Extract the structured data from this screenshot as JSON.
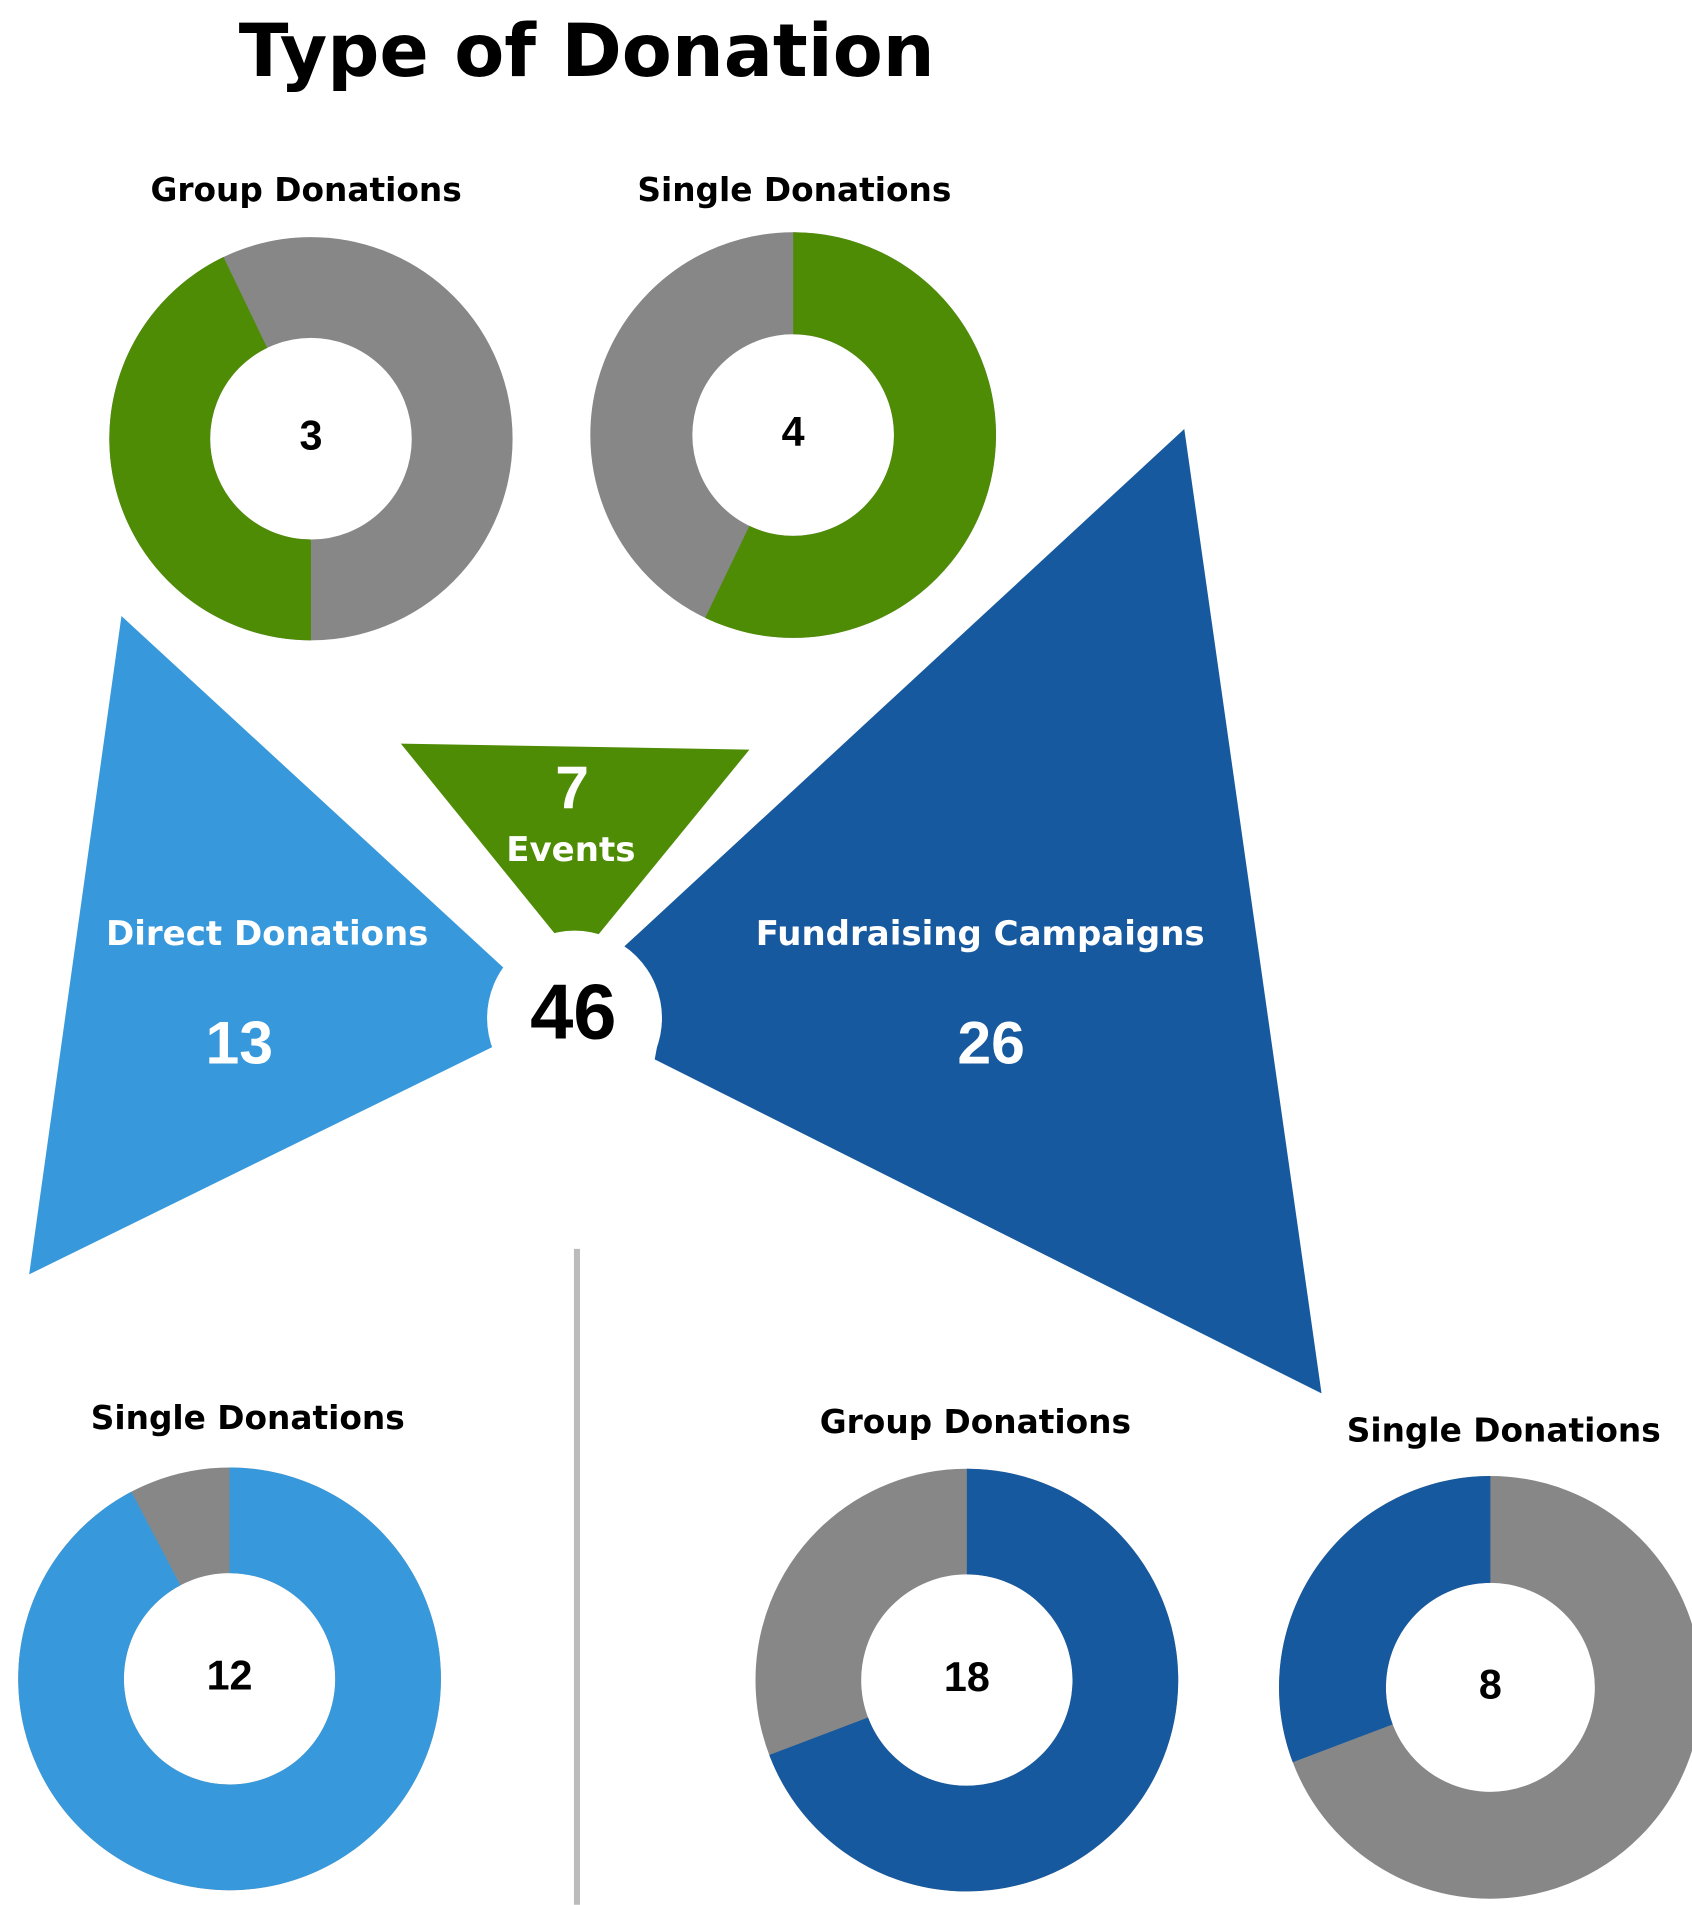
{
  "title": "Type of Donation",
  "total": 46,
  "rest_color": "#878787",
  "branches": [
    {
      "label": "Events",
      "value": 7,
      "color": "#4e8c05",
      "donuts": [
        {
          "title": "Group Donations",
          "value": 3
        },
        {
          "title": "Single Donations",
          "value": 4
        }
      ]
    },
    {
      "label": "Direct Donations",
      "value": 13,
      "color": "#3799db",
      "donuts": [
        {
          "title": "Single Donations",
          "value": 12
        }
      ]
    },
    {
      "label": "Fundraising Campaigns",
      "value": 26,
      "color": "#17599f",
      "donuts": [
        {
          "title": "Group Donations",
          "value": 18
        },
        {
          "title": "Single Donations",
          "value": 8
        }
      ]
    }
  ]
}
